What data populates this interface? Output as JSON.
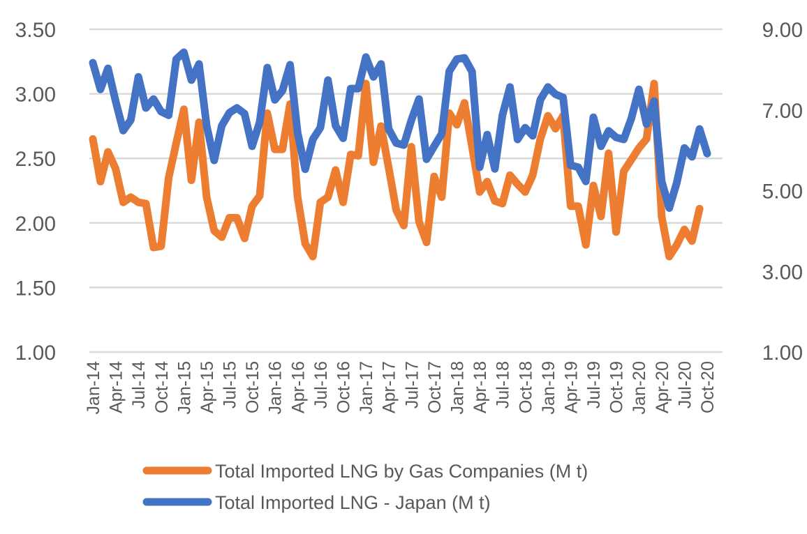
{
  "chart_data": {
    "type": "line",
    "title": "",
    "xlabel": "",
    "ylabel": "",
    "y_left": {
      "ylim": [
        1.0,
        3.5
      ],
      "ticks": [
        "1.00",
        "1.50",
        "2.00",
        "2.50",
        "3.00",
        "3.50"
      ]
    },
    "y_right": {
      "ylim": [
        1.0,
        9.0
      ],
      "ticks": [
        "1.00",
        "3.00",
        "5.00",
        "7.00",
        "9.00"
      ]
    },
    "grid": true,
    "legend_position": "bottom",
    "x_tick_labels": [
      "Jan-14",
      "Apr-14",
      "Jul-14",
      "Oct-14",
      "Jan-15",
      "Apr-15",
      "Jul-15",
      "Oct-15",
      "Jan-16",
      "Apr-16",
      "Jul-16",
      "Oct-16",
      "Jan-17",
      "Apr-17",
      "Jul-17",
      "Oct-17",
      "Jan-18",
      "Apr-18",
      "Jul-18",
      "Oct-18",
      "Jan-19",
      "Apr-19",
      "Jul-19",
      "Oct-19",
      "Jan-20",
      "Apr-20",
      "Jul-20",
      "Oct-20"
    ],
    "x_start": "Jan-14",
    "series": [
      {
        "name": "Total Imported LNG by Gas Companies (M t)",
        "axis": "left",
        "color": "#ED7D31",
        "values": [
          2.65,
          2.32,
          2.55,
          2.42,
          2.16,
          2.2,
          2.16,
          2.15,
          1.81,
          1.82,
          2.35,
          2.62,
          2.88,
          2.33,
          2.78,
          2.2,
          1.94,
          1.89,
          2.04,
          2.04,
          1.88,
          2.13,
          2.21,
          2.85,
          2.57,
          2.57,
          2.92,
          2.2,
          1.84,
          1.74,
          2.16,
          2.2,
          2.41,
          2.16,
          2.53,
          2.52,
          3.08,
          2.47,
          2.75,
          2.43,
          2.1,
          1.98,
          2.59,
          2.01,
          1.85,
          2.36,
          2.2,
          2.85,
          2.76,
          2.93,
          2.59,
          2.24,
          2.32,
          2.17,
          2.15,
          2.37,
          2.3,
          2.24,
          2.37,
          2.65,
          2.83,
          2.73,
          2.83,
          2.13,
          2.13,
          1.83,
          2.29,
          2.05,
          2.54,
          1.93,
          2.4,
          2.49,
          2.58,
          2.65,
          3.08,
          2.05,
          1.74,
          1.83,
          1.95,
          1.86,
          2.11
        ]
      },
      {
        "name": "Total Imported LNG - Japan (M t)",
        "axis": "right",
        "color": "#4472C4",
        "values": [
          8.17,
          7.51,
          8.03,
          7.22,
          6.49,
          6.75,
          7.82,
          7.05,
          7.27,
          6.96,
          6.87,
          8.26,
          8.43,
          7.74,
          8.14,
          6.61,
          5.75,
          6.61,
          6.93,
          7.05,
          6.91,
          6.1,
          6.7,
          8.05,
          7.25,
          7.48,
          8.12,
          6.44,
          5.53,
          6.27,
          6.56,
          7.74,
          6.61,
          6.3,
          7.53,
          7.53,
          8.31,
          7.82,
          8.14,
          6.53,
          6.18,
          6.13,
          6.75,
          7.27,
          5.78,
          6.1,
          6.41,
          7.96,
          8.26,
          8.29,
          7.95,
          5.58,
          6.39,
          5.54,
          6.87,
          7.57,
          6.27,
          6.56,
          6.36,
          7.25,
          7.57,
          7.39,
          7.31,
          5.63,
          5.58,
          5.23,
          6.82,
          6.1,
          6.48,
          6.32,
          6.27,
          6.79,
          7.51,
          6.65,
          7.22,
          5.23,
          4.57,
          5.2,
          6.06,
          5.84,
          6.53,
          5.92
        ]
      }
    ]
  }
}
